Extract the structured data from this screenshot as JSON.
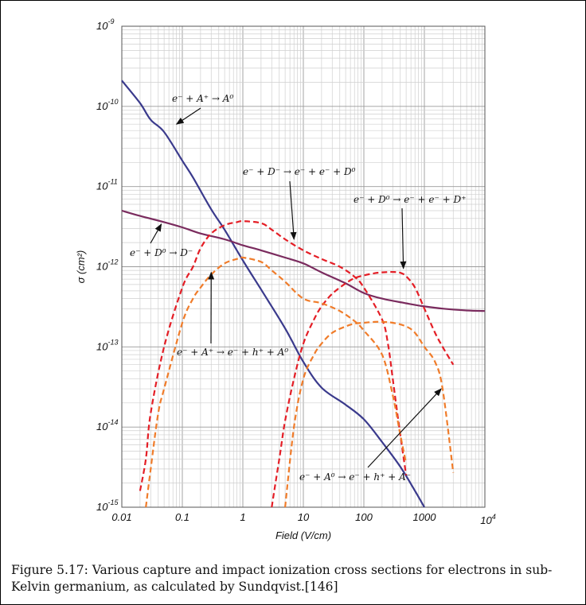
{
  "caption": "Figure 5.17: Various capture and impact ionization cross sections for electrons in sub-Kelvin germanium, as calculated by Sundqvist.[146]",
  "chart_data": {
    "type": "line",
    "xlabel": "Field (V/cm)",
    "ylabel": "σ (cm²)",
    "xscale": "log",
    "yscale": "log",
    "xlim": [
      0.01,
      10000
    ],
    "ylim": [
      1e-15,
      1e-09
    ],
    "grid": true,
    "x_tick_labels": [
      {
        "value": 0.01,
        "label": "0.01"
      },
      {
        "value": 0.1,
        "label": "0.1"
      },
      {
        "value": 1,
        "label": "1"
      },
      {
        "value": 10,
        "label": "10"
      },
      {
        "value": 100,
        "label": "100"
      },
      {
        "value": 1000,
        "label": "1000"
      },
      {
        "value": 10000,
        "label": "10",
        "exp": "4"
      }
    ],
    "y_tick_labels": [
      {
        "value": 1e-09,
        "label": "10",
        "exp": "-9"
      },
      {
        "value": 1e-10,
        "label": "10",
        "exp": "-10"
      },
      {
        "value": 1e-11,
        "label": "10",
        "exp": "-11"
      },
      {
        "value": 1e-12,
        "label": "10",
        "exp": "-12"
      },
      {
        "value": 1e-13,
        "label": "10",
        "exp": "-13"
      },
      {
        "value": 1e-14,
        "label": "10",
        "exp": "-14"
      },
      {
        "value": 1e-15,
        "label": "10",
        "exp": "-15"
      }
    ],
    "series": [
      {
        "name": "e⁻ + A⁺ → A⁰",
        "color": "#3a3a8c",
        "dash": "solid",
        "x": [
          0.01,
          0.02,
          0.03,
          0.05,
          0.1,
          0.15,
          0.3,
          0.5,
          1,
          2,
          5,
          10,
          20,
          50,
          100,
          200,
          400,
          700,
          1000
        ],
        "y": [
          2.1e-10,
          1.1e-10,
          6.8e-11,
          4.8e-11,
          2.1e-11,
          1.3e-11,
          5.2e-12,
          2.9e-12,
          1.2e-12,
          5.2e-13,
          1.7e-13,
          6.5e-14,
          3.1e-14,
          1.9e-14,
          1.25e-14,
          6.5e-15,
          3.2e-15,
          1.6e-15,
          1e-15
        ]
      },
      {
        "name": "e⁻ + D⁰ → D⁻",
        "color": "#7a2b5e",
        "dash": "solid",
        "x": [
          0.01,
          0.02,
          0.05,
          0.1,
          0.2,
          0.5,
          1,
          2,
          5,
          10,
          20,
          50,
          100,
          200,
          500,
          1000,
          2000,
          5000,
          10000
        ],
        "y": [
          5e-12,
          4.3e-12,
          3.6e-12,
          3.1e-12,
          2.6e-12,
          2.2e-12,
          1.85e-12,
          1.6e-12,
          1.3e-12,
          1.1e-12,
          8.5e-13,
          6.2e-13,
          4.7e-13,
          4e-13,
          3.5e-13,
          3.2e-13,
          3e-13,
          2.85e-13,
          2.8e-13
        ]
      },
      {
        "name": "e⁻ + D⁻ → e⁻ + e⁻ + D⁰",
        "color": "#e41e26",
        "dash": "dashed",
        "x": [
          0.02,
          0.025,
          0.03,
          0.05,
          0.1,
          0.15,
          0.2,
          0.3,
          0.5,
          0.8,
          1,
          2,
          3,
          5,
          10,
          20,
          40,
          70,
          100,
          200,
          250,
          300,
          400,
          500
        ],
        "y": [
          1.6e-15,
          4e-15,
          1.5e-14,
          1e-13,
          5.5e-13,
          1e-12,
          1.7e-12,
          2.6e-12,
          3.3e-12,
          3.6e-12,
          3.7e-12,
          3.5e-12,
          2.9e-12,
          2.2e-12,
          1.6e-12,
          1.25e-12,
          1e-12,
          7.5e-13,
          5.5e-13,
          2.2e-13,
          1.1e-13,
          4e-14,
          8e-15,
          2.5e-15
        ]
      },
      {
        "name": "e⁻ + D⁰ → e⁻ + e⁻ + D⁺",
        "color": "#e41e26",
        "dash": "dashed",
        "x": [
          3,
          4,
          5,
          7,
          10,
          15,
          20,
          30,
          50,
          70,
          100,
          150,
          200,
          300,
          400,
          500,
          700,
          1000,
          1500,
          2000,
          3000
        ],
        "y": [
          1e-15,
          4e-15,
          1.2e-14,
          4e-14,
          1.1e-13,
          2.2e-13,
          3.2e-13,
          4.6e-13,
          6.2e-13,
          7.2e-13,
          7.8e-13,
          8.3e-13,
          8.5e-13,
          8.6e-13,
          8.4e-13,
          7.6e-13,
          5.5e-13,
          3e-13,
          1.5e-13,
          1e-13,
          6e-14
        ]
      },
      {
        "name": "e⁻ + A⁺ → e⁻ + h⁺ + A⁰",
        "color": "#f07c2a",
        "dash": "dashed",
        "x": [
          0.025,
          0.03,
          0.04,
          0.05,
          0.1,
          0.15,
          0.2,
          0.3,
          0.5,
          0.8,
          1,
          2,
          3,
          5,
          10,
          20,
          40,
          70,
          100,
          200,
          300,
          400,
          500
        ],
        "y": [
          1e-15,
          3e-15,
          1.5e-14,
          3e-14,
          2e-13,
          4e-13,
          5.5e-13,
          8e-13,
          1.1e-12,
          1.25e-12,
          1.3e-12,
          1.15e-12,
          9e-13,
          6.5e-13,
          4e-13,
          3.5e-13,
          2.8e-13,
          2.1e-13,
          1.6e-13,
          8e-14,
          2.5e-14,
          8e-15,
          3.5e-15
        ]
      },
      {
        "name": "e⁻ + A⁰ → e⁻ + h⁺ + A⁻",
        "color": "#f07c2a",
        "dash": "dashed",
        "x": [
          5,
          7,
          10,
          15,
          20,
          30,
          50,
          70,
          100,
          150,
          200,
          300,
          500,
          700,
          1000,
          1500,
          2000,
          3000
        ],
        "y": [
          1e-15,
          1e-14,
          4e-14,
          8e-14,
          1.1e-13,
          1.5e-13,
          1.8e-13,
          1.95e-13,
          2e-13,
          2.05e-13,
          2.05e-13,
          2e-13,
          1.8e-13,
          1.5e-13,
          1e-13,
          6.5e-14,
          3e-14,
          2.7e-15
        ]
      }
    ],
    "annotations": [
      {
        "text": "e⁻ + A⁺ → A⁰",
        "arrow_to": [
          0.08,
          6e-11
        ]
      },
      {
        "text": "e⁻ + D⁻ → e⁻ + e⁻ + D⁰",
        "arrow_to": [
          7,
          2.2e-12
        ]
      },
      {
        "text": "e⁻ + D⁰ → e⁻ + e⁻ + D⁺",
        "arrow_to": [
          450,
          9.5e-13
        ]
      },
      {
        "text": "e⁻ + D⁰ → D⁻",
        "arrow_to": [
          0.045,
          3.4e-12
        ]
      },
      {
        "text": "e⁻ + A⁺ → e⁻ + h⁺ + A⁰",
        "arrow_to": [
          0.3,
          8.5e-13
        ]
      },
      {
        "text": "e⁻ + A⁰ → e⁻ + h⁺ + A⁻",
        "arrow_to": [
          1900,
          3e-14
        ]
      }
    ]
  }
}
